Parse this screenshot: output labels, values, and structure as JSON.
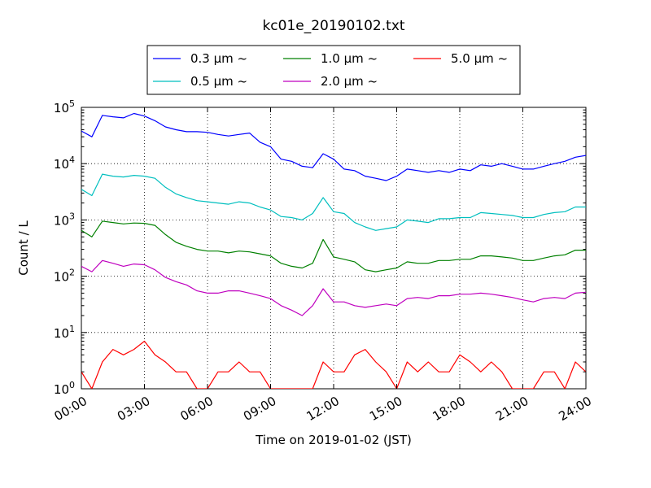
{
  "chart_data": {
    "type": "line",
    "title": "kc01e_20190102.txt",
    "xlabel": "Time on 2019-01-02 (JST)",
    "ylabel": "Count / L",
    "yscale": "log",
    "ylim": [
      1,
      100000
    ],
    "xlim": [
      "00:00",
      "24:00"
    ],
    "grid": true,
    "legend": "top-center, outside plot",
    "x_tick_labels": [
      "00:00",
      "03:00",
      "06:00",
      "09:00",
      "12:00",
      "15:00",
      "18:00",
      "21:00",
      "24:00"
    ],
    "y_tick_labels": [
      {
        "base": "10",
        "exp": "0"
      },
      {
        "base": "10",
        "exp": "1"
      },
      {
        "base": "10",
        "exp": "2"
      },
      {
        "base": "10",
        "exp": "3"
      },
      {
        "base": "10",
        "exp": "4"
      },
      {
        "base": "10",
        "exp": "5"
      }
    ],
    "x_hours": [
      0.0,
      0.5,
      1.0,
      1.5,
      2.0,
      2.5,
      3.0,
      3.5,
      4.0,
      4.5,
      5.0,
      5.5,
      6.0,
      6.5,
      7.0,
      7.5,
      8.0,
      8.5,
      9.0,
      9.5,
      10.0,
      10.5,
      11.0,
      11.5,
      12.0,
      12.5,
      13.0,
      13.5,
      14.0,
      14.5,
      15.0,
      15.5,
      16.0,
      16.5,
      17.0,
      17.5,
      18.0,
      18.5,
      19.0,
      19.5,
      20.0,
      20.5,
      21.0,
      21.5,
      22.0,
      22.5,
      23.0,
      23.5,
      24.0
    ],
    "series": [
      {
        "name": "0.3 μm ~",
        "color": "#0000ff",
        "values": [
          38000,
          30000,
          72000,
          68000,
          65000,
          78000,
          70000,
          58000,
          45000,
          40000,
          37000,
          37000,
          36000,
          33000,
          31000,
          33000,
          35000,
          24000,
          20000,
          12000,
          11000,
          9000,
          8500,
          15000,
          12000,
          8000,
          7500,
          6000,
          5500,
          5000,
          6000,
          8000,
          7500,
          7000,
          7500,
          7000,
          8000,
          7500,
          9500,
          9000,
          10000,
          9000,
          8000,
          8000,
          9000,
          10000,
          11000,
          13000,
          14000
        ]
      },
      {
        "name": "0.5 μm ~",
        "color": "#00bfbf",
        "values": [
          3500,
          2700,
          6500,
          6000,
          5800,
          6200,
          6000,
          5500,
          3800,
          2900,
          2500,
          2200,
          2100,
          2000,
          1900,
          2100,
          2000,
          1700,
          1500,
          1150,
          1100,
          1000,
          1300,
          2500,
          1400,
          1300,
          900,
          750,
          650,
          700,
          750,
          1000,
          950,
          900,
          1050,
          1050,
          1100,
          1100,
          1350,
          1300,
          1250,
          1200,
          1100,
          1100,
          1250,
          1350,
          1400,
          1700,
          1700
        ]
      },
      {
        "name": "1.0 μm ~",
        "color": "#008000",
        "values": [
          650,
          500,
          950,
          900,
          850,
          880,
          870,
          800,
          550,
          400,
          340,
          300,
          280,
          280,
          260,
          280,
          270,
          250,
          230,
          170,
          150,
          140,
          170,
          450,
          220,
          200,
          180,
          130,
          120,
          130,
          140,
          180,
          170,
          170,
          190,
          190,
          200,
          200,
          230,
          230,
          220,
          210,
          190,
          190,
          210,
          230,
          240,
          290,
          290
        ]
      },
      {
        "name": "2.0 μm ~",
        "color": "#bf00bf",
        "values": [
          150,
          120,
          190,
          170,
          150,
          165,
          160,
          130,
          95,
          80,
          70,
          55,
          50,
          50,
          55,
          55,
          50,
          45,
          40,
          30,
          25,
          20,
          30,
          60,
          35,
          35,
          30,
          28,
          30,
          32,
          30,
          40,
          42,
          40,
          45,
          45,
          48,
          48,
          50,
          48,
          45,
          42,
          38,
          35,
          40,
          42,
          40,
          50,
          52
        ]
      },
      {
        "name": "5.0 μm ~",
        "color": "#ff0000",
        "values": [
          2,
          1,
          3,
          5,
          4,
          5,
          7,
          4,
          3,
          2,
          2,
          1,
          1,
          2,
          2,
          3,
          2,
          2,
          1,
          1,
          1,
          1,
          1,
          3,
          2,
          2,
          4,
          5,
          3,
          2,
          1,
          3,
          2,
          3,
          2,
          2,
          4,
          3,
          2,
          3,
          2,
          1,
          1,
          1,
          2,
          2,
          1,
          3,
          2
        ]
      }
    ],
    "legend_entries": [
      {
        "label": "0.3 μm ~",
        "color": "#0000ff"
      },
      {
        "label": "1.0 μm ~",
        "color": "#008000"
      },
      {
        "label": "5.0 μm ~",
        "color": "#ff0000"
      },
      {
        "label": "0.5 μm ~",
        "color": "#00bfbf"
      },
      {
        "label": "2.0 μm ~",
        "color": "#bf00bf"
      }
    ]
  }
}
